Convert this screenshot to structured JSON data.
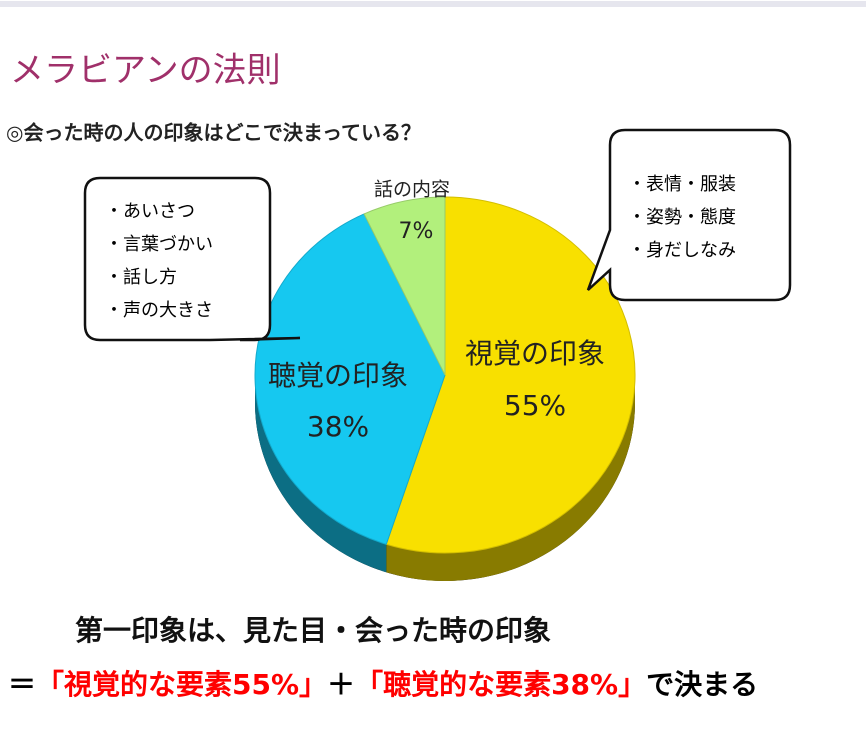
{
  "chart_data": {
    "type": "pie",
    "title": "メラビアンの法則",
    "subtitle": "◎会った時の人の印象はどこで決まっている？",
    "categories": [
      "視覚の印象",
      "聴覚の印象",
      "話の内容"
    ],
    "values": [
      55,
      38,
      7
    ],
    "value_labels": [
      "55%",
      "38%",
      "7%"
    ],
    "colors": [
      "#f8e000",
      "#16c8f0",
      "#b2f07c"
    ],
    "callouts": {
      "left": [
        "・あいさつ",
        "・言葉づかい",
        "・話し方",
        "・声の大きさ"
      ],
      "right": [
        "・表情・服装",
        "・姿勢・態度",
        "・身だしなみ"
      ]
    },
    "conclusion": {
      "line1": "第一印象は、見た目・会った時の印象",
      "line2": [
        {
          "text": "＝",
          "color": "#000000"
        },
        {
          "text": "「視覚的な要素55%」",
          "color": "#ff0000"
        },
        {
          "text": "＋",
          "color": "#000000"
        },
        {
          "text": "「聴覚的な要素38%」",
          "color": "#ff0000"
        },
        {
          "text": "で決まる",
          "color": "#000000"
        }
      ]
    }
  }
}
